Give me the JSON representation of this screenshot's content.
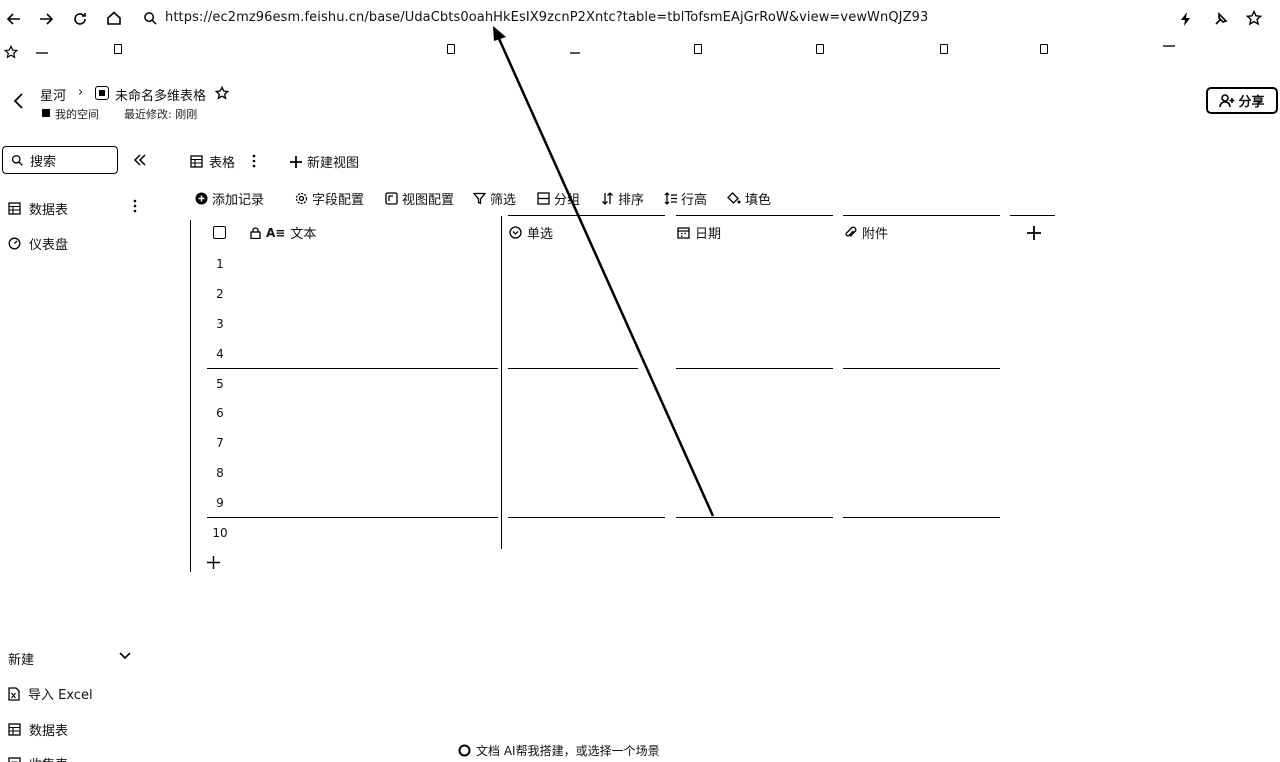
{
  "browser": {
    "url": "https://ec2mz96esm.feishu.cn/base/UdaCbts0oahHkEsIX9zcnP2Xntc?table=tblTofsmEAjGrRoW&view=vewWnQJZ93"
  },
  "header": {
    "breadcrumb_parent": "星河",
    "doc_title": "未命名多维表格",
    "space": "我的空间",
    "last_modified": "最近修改: 刚刚",
    "share_label": "分享"
  },
  "sidebar": {
    "search_placeholder": "搜索",
    "items": [
      {
        "label": "数据表"
      },
      {
        "label": "仪表盘"
      }
    ],
    "new_section": "新建",
    "new_items": [
      {
        "label": "导入 Excel"
      },
      {
        "label": "数据表"
      },
      {
        "label": "收集表"
      }
    ]
  },
  "view_bar": {
    "view_name": "表格",
    "new_view": "新建视图"
  },
  "toolbar": {
    "add_record": "添加记录",
    "field_config": "字段配置",
    "view_config": "视图配置",
    "filter": "筛选",
    "group": "分组",
    "sort": "排序",
    "row_height": "行高",
    "fill_color": "填色"
  },
  "grid": {
    "columns": [
      {
        "name": "文本",
        "icon": "text-icon"
      },
      {
        "name": "单选",
        "icon": "single-select-icon"
      },
      {
        "name": "日期",
        "icon": "calendar-icon"
      },
      {
        "name": "附件",
        "icon": "attachment-icon"
      }
    ],
    "rows": [
      "1",
      "2",
      "3",
      "4",
      "5",
      "6",
      "7",
      "8",
      "9",
      "10"
    ]
  },
  "footer": {
    "ai_hint": "文档 AI帮我搭建，或选择一个场景"
  }
}
